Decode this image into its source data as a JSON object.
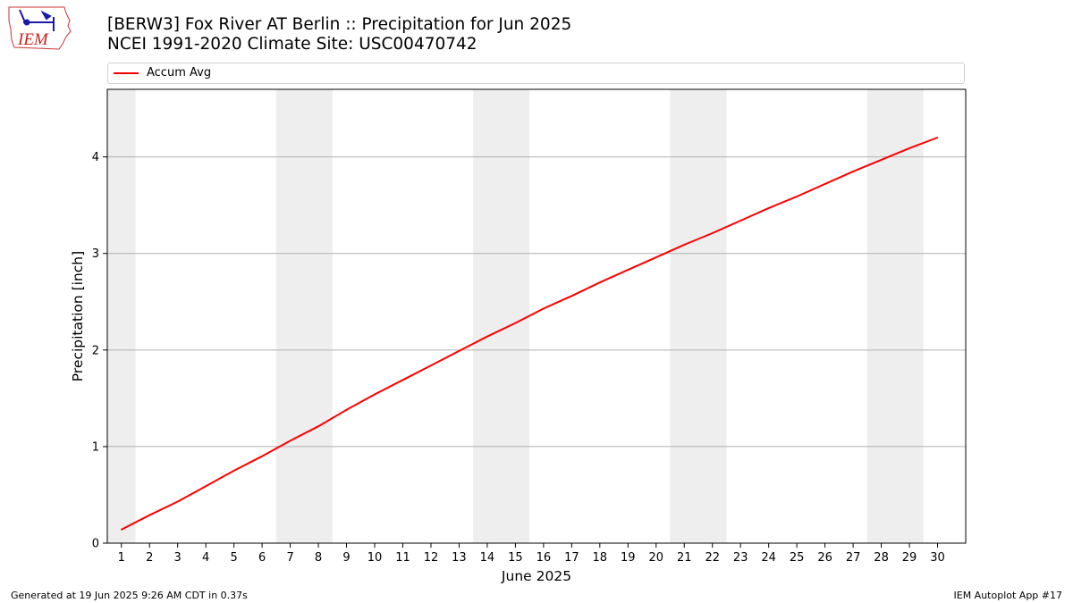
{
  "header": {
    "title_line1": "[BERW3] Fox River  AT Berlin :: Precipitation for Jun 2025",
    "title_line2": "NCEI 1991-2020 Climate Site: USC00470742"
  },
  "logo": {
    "text": "IEM",
    "icon": "iem-iowa-map-logo"
  },
  "footer": {
    "left": "Generated at 19 Jun 2025 9:26 AM CDT in 0.37s",
    "right": "IEM Autoplot App #17"
  },
  "colors": {
    "series": "#ff0000",
    "weekend_band": "#eeeeee",
    "grid": "#b0b0b0"
  },
  "chart_data": {
    "type": "line",
    "title": "[BERW3] Fox River  AT Berlin :: Precipitation for Jun 2025",
    "subtitle": "NCEI 1991-2020 Climate Site: USC00470742",
    "xlabel": "June 2025",
    "ylabel": "Precipitation [inch]",
    "xlim": [
      0.5,
      31.0
    ],
    "ylim": [
      0,
      4.7
    ],
    "yticks": [
      0,
      1,
      2,
      3,
      4
    ],
    "x": [
      1,
      2,
      3,
      4,
      5,
      6,
      7,
      8,
      9,
      10,
      11,
      12,
      13,
      14,
      15,
      16,
      17,
      18,
      19,
      20,
      21,
      22,
      23,
      24,
      25,
      26,
      27,
      28,
      29,
      30
    ],
    "xtick_labels": [
      "1",
      "2",
      "3",
      "4",
      "5",
      "6",
      "7",
      "8",
      "9",
      "10",
      "11",
      "12",
      "13",
      "14",
      "15",
      "16",
      "17",
      "18",
      "19",
      "20",
      "21",
      "22",
      "23",
      "24",
      "25",
      "26",
      "27",
      "28",
      "29",
      "30"
    ],
    "series": [
      {
        "name": "Accum Avg",
        "color": "#ff0000",
        "values": [
          0.14,
          0.29,
          0.43,
          0.59,
          0.75,
          0.9,
          1.06,
          1.21,
          1.38,
          1.54,
          1.69,
          1.84,
          1.99,
          2.14,
          2.28,
          2.43,
          2.56,
          2.7,
          2.83,
          2.96,
          3.09,
          3.21,
          3.34,
          3.47,
          3.59,
          3.72,
          3.85,
          3.97,
          4.09,
          4.2
        ]
      }
    ],
    "shaded_days": [
      [
        0.5,
        1.5
      ],
      [
        6.5,
        8.5
      ],
      [
        13.5,
        15.5
      ],
      [
        20.5,
        22.5
      ],
      [
        27.5,
        29.5
      ]
    ],
    "grid": "y-major",
    "legend": "top"
  }
}
